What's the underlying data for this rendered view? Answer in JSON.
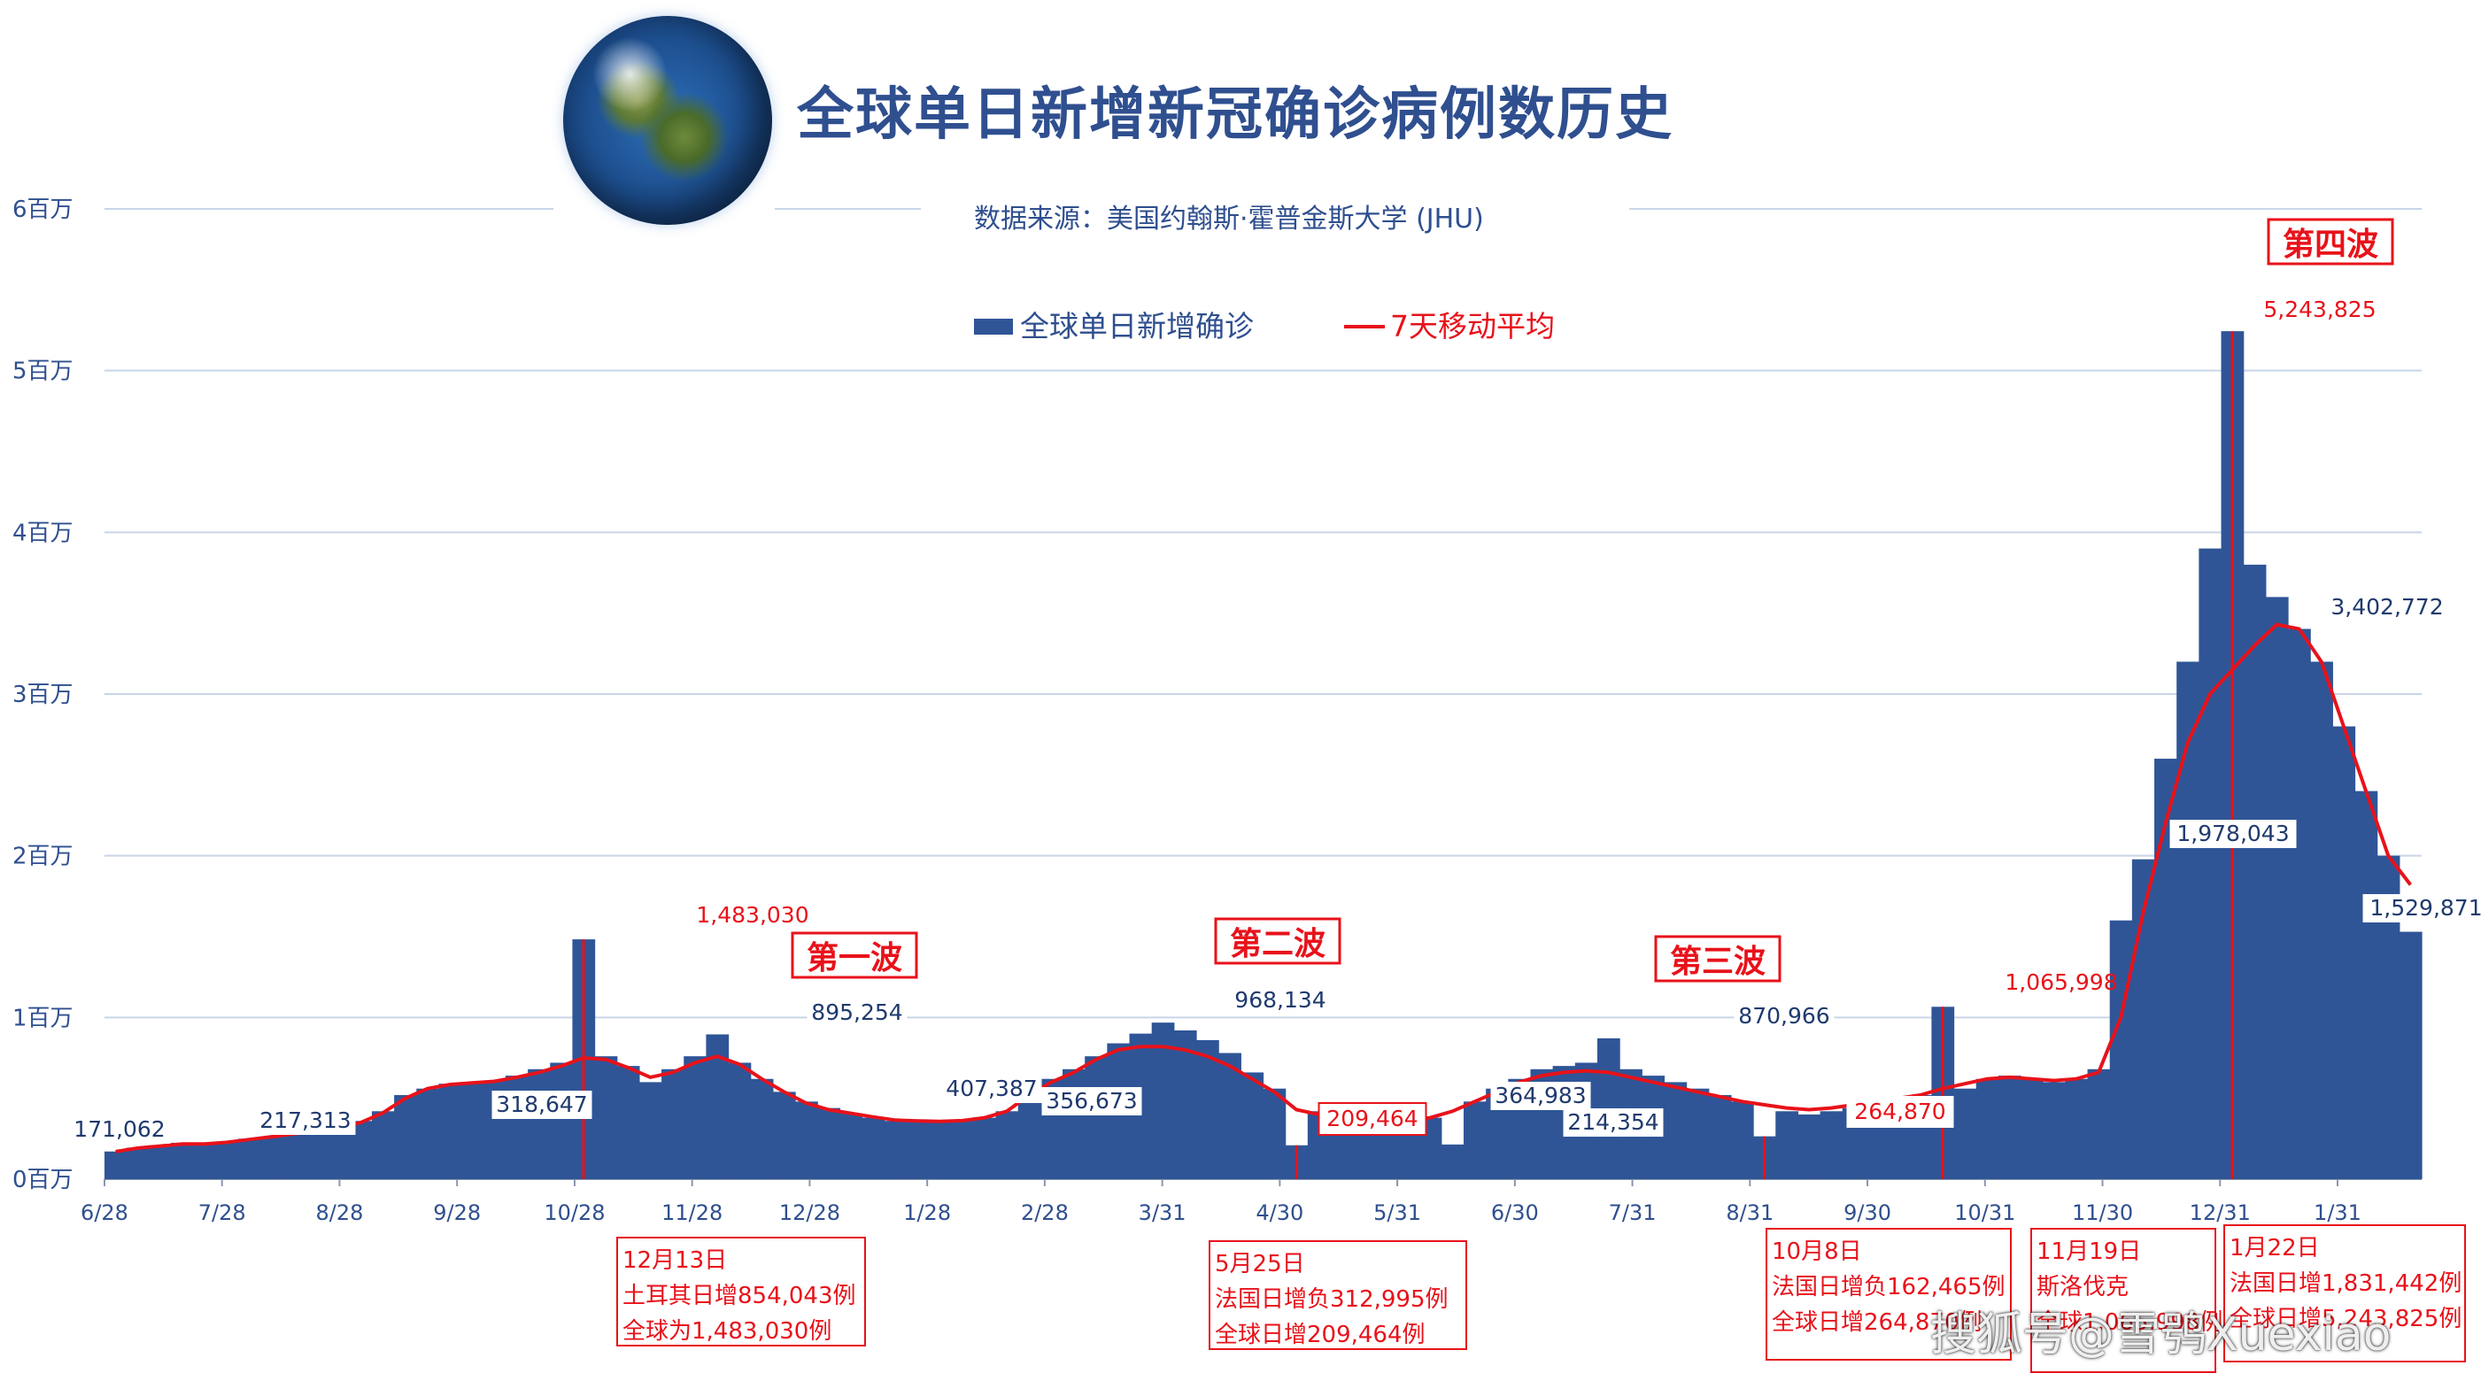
{
  "title": "全球单日新增新冠确诊病例数历史",
  "source": "数据来源：美国约翰斯·霍普金斯大学 (JHU)",
  "legend": {
    "bars": "全球单日新增确诊",
    "line": "7天移动平均"
  },
  "watermark": "搜狐号@雪鸮Xuexiao",
  "colors": {
    "bars": "#2f5597",
    "line": "#e8121a",
    "grid": "#c9d5e8",
    "text": "#2f4f8f"
  },
  "chart_data": {
    "type": "bar",
    "ylim": [
      0,
      6000000
    ],
    "yticks": [
      {
        "v": 0,
        "label": "0百万"
      },
      {
        "v": 1000000,
        "label": "1百万"
      },
      {
        "v": 2000000,
        "label": "2百万"
      },
      {
        "v": 3000000,
        "label": "3百万"
      },
      {
        "v": 4000000,
        "label": "4百万"
      },
      {
        "v": 5000000,
        "label": "5百万"
      },
      {
        "v": 6000000,
        "label": "6百万"
      }
    ],
    "xticks": [
      "6/28",
      "7/28",
      "8/28",
      "9/28",
      "10/28",
      "11/28",
      "12/28",
      "1/28",
      "2/28",
      "3/31",
      "4/30",
      "5/31",
      "6/30",
      "7/31",
      "8/31",
      "9/30",
      "10/31",
      "11/30",
      "12/31",
      "1/31"
    ],
    "series": [
      {
        "name": "全球单日新增确诊",
        "type": "bar",
        "values": [
          171062,
          195000,
          210000,
          225000,
          217313,
          230000,
          250000,
          265000,
          285000,
          300000,
          318647,
          360000,
          420000,
          520000,
          560000,
          590000,
          600000,
          610000,
          640000,
          680000,
          720000,
          1483030,
          760000,
          700000,
          600000,
          680000,
          760000,
          895254,
          720000,
          620000,
          540000,
          480000,
          440000,
          407387,
          380000,
          360000,
          370000,
          356673,
          360000,
          380000,
          420000,
          540000,
          620000,
          680000,
          760000,
          840000,
          900000,
          968134,
          920000,
          860000,
          780000,
          660000,
          560000,
          209464,
          420000,
          380000,
          360000,
          350000,
          364983,
          380000,
          214354,
          480000,
          560000,
          620000,
          680000,
          700000,
          720000,
          870966,
          680000,
          640000,
          600000,
          560000,
          520000,
          480000,
          264870,
          420000,
          400000,
          420000,
          440000,
          460000,
          490000,
          520000,
          1065998,
          560000,
          620000,
          640000,
          620000,
          600000,
          620000,
          680000,
          1600000,
          1978043,
          2600000,
          3200000,
          3900000,
          5243825,
          3800000,
          3600000,
          3402772,
          3200000,
          2800000,
          2400000,
          2000000,
          1529871
        ]
      },
      {
        "name": "7天移动平均",
        "type": "line",
        "values": [
          171062,
          192000,
          205000,
          218000,
          217313,
          228000,
          245000,
          262000,
          280000,
          298000,
          318647,
          350000,
          410000,
          500000,
          560000,
          585000,
          595000,
          605000,
          630000,
          660000,
          700000,
          750000,
          740000,
          690000,
          630000,
          660000,
          720000,
          760000,
          710000,
          620000,
          540000,
          470000,
          430000,
          407387,
          385000,
          365000,
          360000,
          356673,
          362000,
          380000,
          420000,
          520000,
          600000,
          660000,
          740000,
          800000,
          820000,
          820000,
          800000,
          760000,
          700000,
          620000,
          540000,
          430000,
          400000,
          375000,
          362000,
          355000,
          364983,
          380000,
          420000,
          480000,
          540000,
          600000,
          640000,
          660000,
          670000,
          660000,
          630000,
          600000,
          570000,
          540000,
          510000,
          480000,
          460000,
          440000,
          430000,
          440000,
          460000,
          480000,
          500000,
          520000,
          560000,
          590000,
          620000,
          630000,
          620000,
          610000,
          620000,
          660000,
          1000000,
          1650000,
          2200000,
          2700000,
          3000000,
          3150000,
          3300000,
          3430000,
          3402772,
          3200000,
          2800000,
          2400000,
          2000000,
          1820000
        ]
      }
    ],
    "labels_blue": [
      "171,062",
      "217,313",
      "318,647",
      "895,254",
      "407,387",
      "356,673",
      "968,134",
      "364,983",
      "214,354",
      "870,966",
      "1,978,043",
      "3,402,772",
      "1,529,871"
    ],
    "labels_red": [
      "1,483,030",
      "209,464",
      "264,870",
      "1,065,998",
      "5,243,825"
    ],
    "waves": [
      "第一波",
      "第二波",
      "第三波",
      "第四波"
    ],
    "notes": [
      {
        "lines": [
          "12月13日",
          "土耳其日增854,043例",
          "全球为1,483,030例"
        ]
      },
      {
        "lines": [
          "5月25日",
          "法国日增负312,995例",
          "全球日增209,464例"
        ]
      },
      {
        "lines": [
          "10月8日",
          "法国日增负162,465例",
          "全球日增264,870例"
        ]
      },
      {
        "lines": [
          "11月19日",
          "斯洛伐克",
          "全球1,065,998例"
        ]
      },
      {
        "lines": [
          "1月22日",
          "法国日增1,831,442例",
          "全球日增5,243,825例"
        ]
      }
    ]
  }
}
